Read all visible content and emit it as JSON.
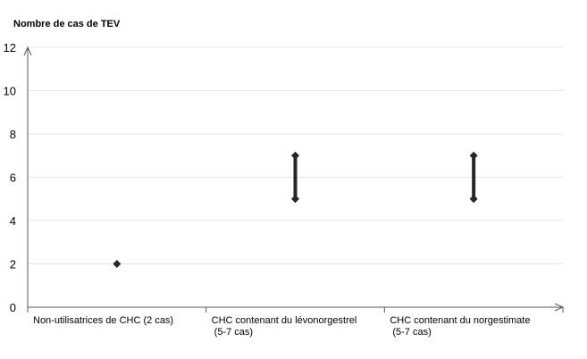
{
  "chart_data": {
    "type": "scatter",
    "title": "",
    "ylabel": "Nombre de cas de TEV",
    "xlabel": "",
    "ylim": [
      0,
      12
    ],
    "yticks": [
      "0",
      "2",
      "4",
      "6",
      "8",
      "10",
      "12"
    ],
    "grid": true,
    "legend": "none",
    "categories": [
      [
        "Non-utilisatrices de CHC (2 cas)"
      ],
      [
        "CHC contenant du lévonorgestrel",
        "(5-7 cas)"
      ],
      [
        "CHC contenant du norgestimate",
        "(5-7 cas)"
      ]
    ],
    "ranges": [
      {
        "low": 2,
        "high": 2
      },
      {
        "low": 5,
        "high": 7
      },
      {
        "low": 5,
        "high": 7
      }
    ],
    "colors": {
      "marker": "#262626",
      "grid": "#e4e4e4",
      "axis": "#595959"
    }
  }
}
